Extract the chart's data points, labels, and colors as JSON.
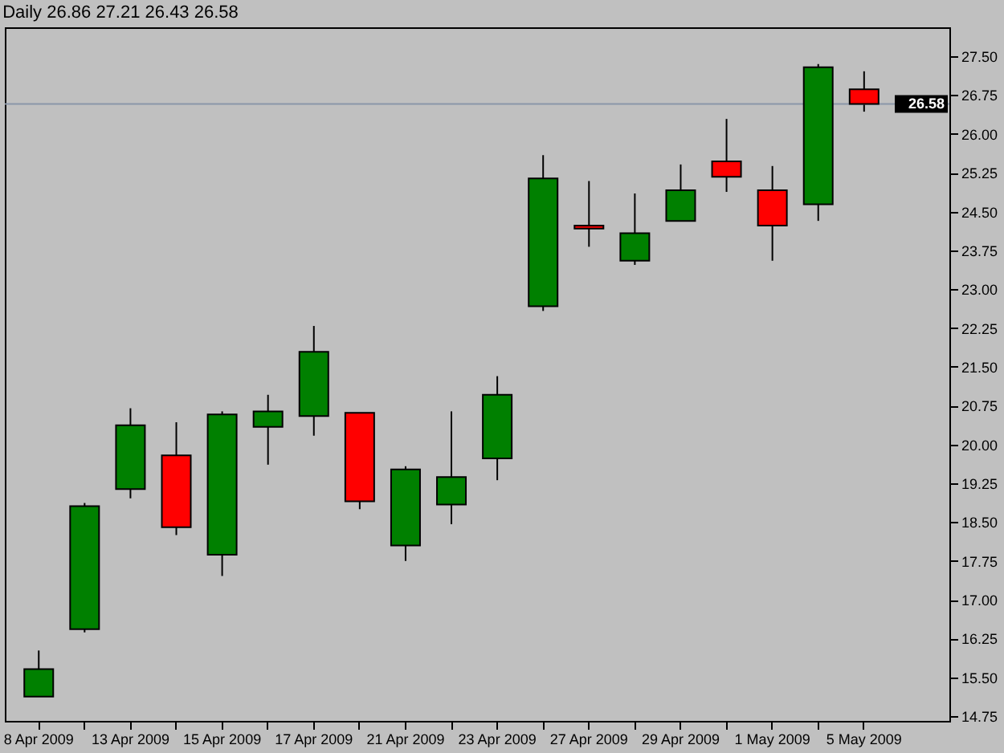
{
  "chart_data": {
    "type": "candlestick",
    "title": "Daily   26.86 27.21 26.43 26.58",
    "categories": [
      "8 Apr 2009",
      null,
      "13 Apr 2009",
      null,
      "15 Apr 2009",
      null,
      "17 Apr 2009",
      null,
      "21 Apr 2009",
      null,
      "23 Apr 2009",
      null,
      "27 Apr 2009",
      null,
      "29 Apr 2009",
      null,
      "1 May 2009",
      null,
      "5 May 2009"
    ],
    "ohlc": [
      [
        15.13,
        16.02,
        15.13,
        15.66
      ],
      [
        16.43,
        18.87,
        16.37,
        18.81
      ],
      [
        19.14,
        20.7,
        18.96,
        20.37
      ],
      [
        19.79,
        20.43,
        18.25,
        18.4
      ],
      [
        17.87,
        20.64,
        17.46,
        20.58
      ],
      [
        20.34,
        20.96,
        19.61,
        20.64
      ],
      [
        20.55,
        22.29,
        20.17,
        21.79
      ],
      [
        20.61,
        20.61,
        18.75,
        18.9
      ],
      [
        18.05,
        19.58,
        17.75,
        19.52
      ],
      [
        18.84,
        20.64,
        18.46,
        19.37
      ],
      [
        19.73,
        21.32,
        19.31,
        20.96
      ],
      [
        22.67,
        25.59,
        22.58,
        25.14
      ],
      [
        24.23,
        25.09,
        23.82,
        24.17
      ],
      [
        23.55,
        24.85,
        23.47,
        24.08
      ],
      [
        24.32,
        25.41,
        24.32,
        24.91
      ],
      [
        25.47,
        26.29,
        24.88,
        25.17
      ],
      [
        24.91,
        25.38,
        23.55,
        24.23
      ],
      [
        24.64,
        27.35,
        24.32,
        27.29
      ],
      [
        26.86,
        27.21,
        26.43,
        26.58
      ]
    ],
    "colors": [
      "#008000",
      "#008000",
      "#008000",
      "#ff0000",
      "#008000",
      "#008000",
      "#008000",
      "#ff0000",
      "#008000",
      "#008000",
      "#008000",
      "#008000",
      "#ff0000",
      "#008000",
      "#008000",
      "#ff0000",
      "#ff0000",
      "#008000",
      "#ff0000"
    ],
    "ylim": [
      14.66,
      28.06
    ],
    "yticks": [
      {
        "value": 14.75,
        "label": "14.75"
      },
      {
        "value": 15.5,
        "label": "15.50"
      },
      {
        "value": 16.25,
        "label": "16.25"
      },
      {
        "value": 17,
        "label": "17.00"
      },
      {
        "value": 17.75,
        "label": "17.75"
      },
      {
        "value": 18.5,
        "label": "18.50"
      },
      {
        "value": 19.25,
        "label": "19.25"
      },
      {
        "value": 20,
        "label": "20.00"
      },
      {
        "value": 20.75,
        "label": "20.75"
      },
      {
        "value": 21.5,
        "label": "21.50"
      },
      {
        "value": 22.25,
        "label": "22.25"
      },
      {
        "value": 23,
        "label": "23.00"
      },
      {
        "value": 23.75,
        "label": "23.75"
      },
      {
        "value": 24.5,
        "label": "24.50"
      },
      {
        "value": 25.25,
        "label": "25.25"
      },
      {
        "value": 26,
        "label": "26.00"
      },
      {
        "value": 26.75,
        "label": "26.75"
      },
      {
        "value": 27.5,
        "label": "27.50"
      }
    ],
    "ref_lines": [
      {
        "axis": "y",
        "value": 26.58,
        "label": "26.58",
        "color": "#8a96a8"
      }
    ]
  }
}
